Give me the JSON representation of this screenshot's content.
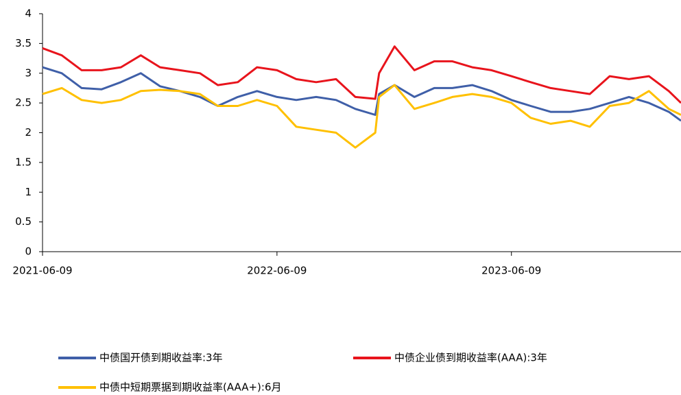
{
  "chart_data": {
    "type": "line",
    "x": [
      "2021-06-09",
      "2021-07-09",
      "2021-08-09",
      "2021-09-09",
      "2021-10-09",
      "2021-11-09",
      "2021-12-09",
      "2022-01-09",
      "2022-02-09",
      "2022-03-09",
      "2022-04-09",
      "2022-05-09",
      "2022-06-09",
      "2022-07-09",
      "2022-08-09",
      "2022-09-09",
      "2022-10-09",
      "2022-11-09",
      "2022-11-15",
      "2022-12-09",
      "2023-01-09",
      "2023-02-09",
      "2023-03-09",
      "2023-04-09",
      "2023-05-09",
      "2023-06-09",
      "2023-07-09",
      "2023-08-09",
      "2023-09-09",
      "2023-10-09",
      "2023-11-09",
      "2023-12-09",
      "2024-01-09",
      "2024-02-09",
      "2024-02-28"
    ],
    "series": [
      {
        "name": "中债国开债到期收益率:3年",
        "color": "#3f5fa8",
        "values": [
          3.1,
          3.0,
          2.75,
          2.73,
          2.85,
          3.0,
          2.78,
          2.7,
          2.6,
          2.45,
          2.6,
          2.7,
          2.6,
          2.55,
          2.6,
          2.55,
          2.4,
          2.3,
          2.65,
          2.8,
          2.6,
          2.75,
          2.75,
          2.8,
          2.7,
          2.55,
          2.45,
          2.35,
          2.35,
          2.4,
          2.5,
          2.6,
          2.5,
          2.35,
          2.2
        ]
      },
      {
        "name": "中债企业债到期收益率(AAA):3年",
        "color": "#e8141c",
        "values": [
          3.42,
          3.3,
          3.05,
          3.05,
          3.1,
          3.3,
          3.1,
          3.05,
          3.0,
          2.8,
          2.85,
          3.1,
          3.05,
          2.9,
          2.85,
          2.9,
          2.6,
          2.57,
          3.0,
          3.45,
          3.05,
          3.2,
          3.2,
          3.1,
          3.05,
          2.95,
          2.85,
          2.75,
          2.7,
          2.65,
          2.95,
          2.9,
          2.95,
          2.7,
          2.5
        ]
      },
      {
        "name": "中债中短期票据到期收益率(AAA+):6月",
        "color": "#ffc000",
        "values": [
          2.65,
          2.75,
          2.55,
          2.5,
          2.55,
          2.7,
          2.72,
          2.7,
          2.65,
          2.45,
          2.45,
          2.55,
          2.45,
          2.1,
          2.05,
          2.0,
          1.75,
          2.0,
          2.6,
          2.8,
          2.4,
          2.5,
          2.6,
          2.65,
          2.6,
          2.5,
          2.25,
          2.15,
          2.2,
          2.1,
          2.45,
          2.5,
          2.7,
          2.4,
          2.3
        ]
      }
    ],
    "xlim": [
      "2021-06-09",
      "2024-02-28"
    ],
    "xticks": [
      "2021-06-09",
      "2022-06-09",
      "2023-06-09"
    ],
    "ylim": [
      0,
      4
    ],
    "yticks": [
      0,
      0.5,
      1,
      1.5,
      2,
      2.5,
      3,
      3.5,
      4
    ],
    "legend": "bottom"
  }
}
